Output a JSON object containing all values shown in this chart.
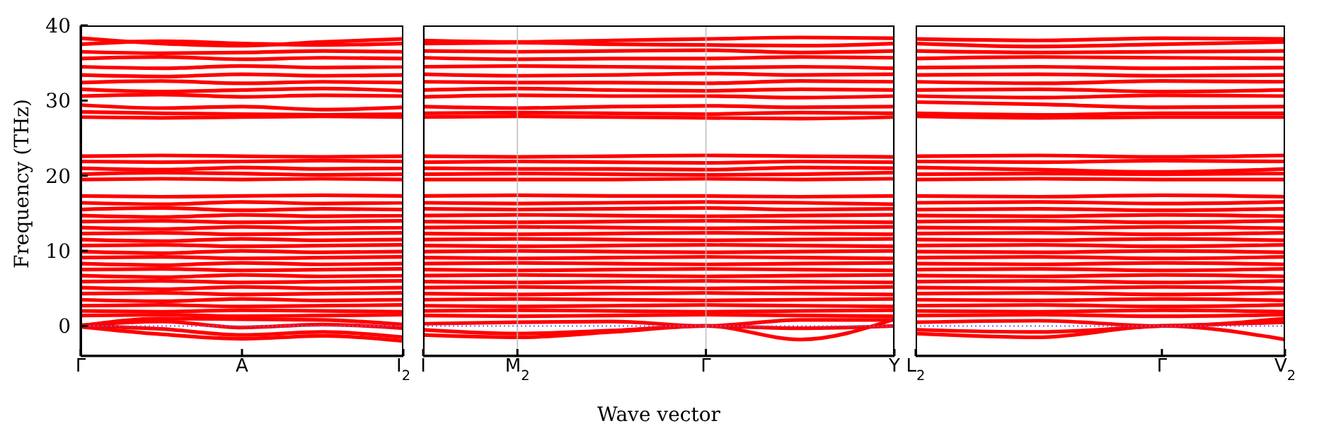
{
  "chart_data": [
    {
      "type": "line",
      "ylabel": "Frequency (THz)",
      "color": "#ff0000",
      "marker": "none",
      "ylim": [
        -4,
        40
      ],
      "yticks": [
        0,
        10,
        20,
        30,
        40
      ],
      "categories": [
        "Γ",
        null,
        "A",
        null,
        "I$_{2}$"
      ],
      "ref_lines": [
        {
          "axis": "y",
          "value": 0,
          "color": "#6666ff",
          "line_style": "dotted"
        }
      ],
      "series": [
        {
          "values": [
            38.3,
            37.6,
            37.3,
            37.8,
            38.2
          ]
        },
        {
          "values": [
            37.5,
            37.9,
            37.6,
            37.4,
            37.6
          ]
        },
        {
          "values": [
            36.5,
            36.3,
            36.4,
            36.6,
            36.5
          ]
        },
        {
          "values": [
            35.6,
            35.8,
            35.5,
            35.7,
            35.6
          ]
        },
        {
          "values": [
            34.5,
            34.3,
            34.6,
            34.4,
            34.5
          ]
        },
        {
          "values": [
            33.4,
            33.2,
            33.5,
            33.3,
            33.4
          ]
        },
        {
          "values": [
            32.4,
            32.6,
            32.3,
            32.5,
            32.4
          ]
        },
        {
          "values": [
            31.5,
            31.2,
            31.4,
            31.6,
            31.3
          ]
        },
        {
          "values": [
            30.6,
            30.8,
            30.5,
            30.7,
            30.6
          ]
        },
        {
          "values": [
            29.4,
            29,
            29.2,
            28.8,
            29.1
          ]
        },
        {
          "values": [
            28.5,
            28.3,
            28.2,
            28.1,
            28.2
          ]
        },
        {
          "values": [
            27.8,
            27.7,
            27.8,
            27.9,
            27.8
          ]
        },
        {
          "values": [
            22.6,
            22.7,
            22.6,
            22.5,
            22.6
          ]
        },
        {
          "values": [
            21.9,
            21.8,
            21.9,
            22,
            21.9
          ]
        },
        {
          "values": [
            21,
            20.8,
            21.1,
            20.9,
            21
          ]
        },
        {
          "values": [
            20.2,
            20.4,
            20.3,
            20.1,
            20.2
          ]
        },
        {
          "values": [
            19.5,
            19.6,
            19.5,
            19.6,
            19.5
          ]
        },
        {
          "values": [
            17.3,
            17.2,
            17.3,
            17.4,
            17.3
          ]
        },
        {
          "values": [
            16.4,
            16.2,
            16.5,
            16.3,
            16.4
          ]
        },
        {
          "values": [
            15.5,
            15.7,
            15.4,
            15.6,
            15.5
          ]
        },
        {
          "values": [
            14.7,
            14.5,
            14.8,
            14.6,
            14.7
          ]
        },
        {
          "values": [
            13.9,
            14,
            13.8,
            13.9,
            14
          ]
        },
        {
          "values": [
            13.1,
            12.9,
            13.2,
            13,
            13.1
          ]
        },
        {
          "values": [
            12.3,
            12.4,
            12.2,
            12.3,
            12.4
          ]
        },
        {
          "values": [
            11.5,
            11.3,
            11.6,
            11.4,
            11.5
          ]
        },
        {
          "values": [
            10.7,
            10.8,
            10.6,
            10.7,
            10.8
          ]
        },
        {
          "values": [
            9.9,
            9.7,
            10,
            9.8,
            9.9
          ]
        },
        {
          "values": [
            9.1,
            9.2,
            9,
            9.1,
            9.2
          ]
        },
        {
          "values": [
            8.3,
            8.1,
            8.4,
            8.2,
            8.3
          ]
        },
        {
          "values": [
            7.5,
            7.6,
            7.4,
            7.5,
            7.6
          ]
        },
        {
          "values": [
            6.7,
            6.5,
            6.8,
            6.6,
            6.7
          ]
        },
        {
          "values": [
            5.9,
            6,
            5.8,
            5.9,
            6
          ]
        },
        {
          "values": [
            5.1,
            4.9,
            5.2,
            5,
            5.1
          ]
        },
        {
          "values": [
            4.3,
            4.4,
            4.2,
            4.3,
            4.4
          ]
        },
        {
          "values": [
            3.5,
            3.3,
            3.6,
            3.4,
            3.5
          ]
        },
        {
          "values": [
            2.7,
            2.8,
            2.6,
            2.7,
            2.8
          ]
        },
        {
          "values": [
            2,
            1.9,
            2.1,
            2,
            1.9
          ]
        },
        {
          "values": [
            1.4,
            1.5,
            1.3,
            1.4,
            1.5
          ]
        },
        {
          "values": [
            0,
            1,
            0.9,
            0.8,
            0.2
          ]
        },
        {
          "values": [
            0.1,
            0.6,
            -0.2,
            0.2,
            -0.3
          ]
        },
        {
          "values": [
            0,
            -0.4,
            -1.2,
            -0.8,
            -1.5
          ]
        },
        {
          "values": [
            -0.1,
            -1.1,
            -1.7,
            -1.3,
            -2
          ]
        }
      ]
    },
    {
      "type": "line",
      "xlabel": "Wave vector",
      "color": "#ff0000",
      "marker": "none",
      "grid": "x",
      "tick_labels": "x",
      "ylim": [
        -4,
        40
      ],
      "yticks": [
        0,
        10,
        20,
        30,
        40
      ],
      "categories": [
        "I",
        "M$_{2}$",
        null,
        "Γ",
        null,
        "Y"
      ],
      "ref_lines": [
        {
          "axis": "y",
          "value": 0,
          "color": "#6666ff",
          "line_style": "dotted"
        }
      ],
      "series": [
        {
          "values": [
            38,
            37.8,
            38,
            38.2,
            38.4,
            38.3
          ]
        },
        {
          "values": [
            37.6,
            37.7,
            37.5,
            37.4,
            37.3,
            37.6
          ]
        },
        {
          "values": [
            36.6,
            36.5,
            36.6,
            36.7,
            36.4,
            36.6
          ]
        },
        {
          "values": [
            35.7,
            35.5,
            35.6,
            35.6,
            35.8,
            35.7
          ]
        },
        {
          "values": [
            34.5,
            34.6,
            34.5,
            34.4,
            34.5,
            34.3
          ]
        },
        {
          "values": [
            33.5,
            33.3,
            33.4,
            33.6,
            33.4,
            33.5
          ]
        },
        {
          "values": [
            32.5,
            32.4,
            32.4,
            32.3,
            32.6,
            32.5
          ]
        },
        {
          "values": [
            31.4,
            31.6,
            31.4,
            31.3,
            31.5,
            31.4
          ]
        },
        {
          "values": [
            30.5,
            30.7,
            30.6,
            30.6,
            30.4,
            30.6
          ]
        },
        {
          "values": [
            29.2,
            29,
            29.2,
            29.3,
            29.1,
            29.2
          ]
        },
        {
          "values": [
            28.3,
            28.4,
            28.3,
            28.2,
            28.4,
            28.3
          ]
        },
        {
          "values": [
            27.8,
            27.9,
            27.8,
            27.7,
            27.6,
            27.8
          ]
        },
        {
          "values": [
            22.6,
            22.5,
            22.6,
            22.7,
            22.6,
            22.5
          ]
        },
        {
          "values": [
            21.8,
            21.9,
            21.8,
            21.7,
            21.9,
            21.8
          ]
        },
        {
          "values": [
            21,
            20.9,
            20.9,
            20.8,
            21.1,
            21
          ]
        },
        {
          "values": [
            20.2,
            20.3,
            20.2,
            20.1,
            20.2,
            20.4
          ]
        },
        {
          "values": [
            19.5,
            19.5,
            19.5,
            19.6,
            19.5,
            19.6
          ]
        },
        {
          "values": [
            17.3,
            17.4,
            17.3,
            17.3,
            17.2,
            17.3
          ]
        },
        {
          "values": [
            16.4,
            16.3,
            16.4,
            16.5,
            16.4,
            16.2
          ]
        },
        {
          "values": [
            15.6,
            15.5,
            15.6,
            15.7,
            15.5,
            15.6
          ]
        },
        {
          "values": [
            14.7,
            14.8,
            14.7,
            14.6,
            14.7,
            14.8
          ]
        },
        {
          "values": [
            13.9,
            13.8,
            13.9,
            14,
            13.9,
            13.8
          ]
        },
        {
          "values": [
            13.1,
            13.2,
            13.1,
            13,
            13.1,
            13.2
          ]
        },
        {
          "values": [
            12.3,
            12.2,
            12.3,
            12.4,
            12.3,
            12.2
          ]
        },
        {
          "values": [
            11.5,
            11.6,
            11.5,
            11.4,
            11.5,
            11.6
          ]
        },
        {
          "values": [
            10.7,
            10.6,
            10.7,
            10.8,
            10.7,
            10.6
          ]
        },
        {
          "values": [
            9.9,
            10,
            9.9,
            9.8,
            9.9,
            10
          ]
        },
        {
          "values": [
            9.1,
            9,
            9.1,
            9.2,
            9.1,
            9
          ]
        },
        {
          "values": [
            8.3,
            8.4,
            8.3,
            8.2,
            8.3,
            8.4
          ]
        },
        {
          "values": [
            7.5,
            7.4,
            7.5,
            7.6,
            7.5,
            7.4
          ]
        },
        {
          "values": [
            6.7,
            6.8,
            6.7,
            6.6,
            6.7,
            6.8
          ]
        },
        {
          "values": [
            5.9,
            5.8,
            5.9,
            6,
            5.9,
            5.8
          ]
        },
        {
          "values": [
            5.1,
            5.2,
            5.1,
            5,
            5.1,
            5.2
          ]
        },
        {
          "values": [
            4.3,
            4.2,
            4.3,
            4.4,
            4.3,
            4.2
          ]
        },
        {
          "values": [
            3.5,
            3.6,
            3.5,
            3.4,
            3.5,
            3.6
          ]
        },
        {
          "values": [
            2.7,
            2.6,
            2.7,
            2.8,
            2.7,
            2.6
          ]
        },
        {
          "values": [
            2,
            2.1,
            2,
            1.9,
            2,
            2.1
          ]
        },
        {
          "values": [
            1.4,
            1.3,
            1.4,
            1.5,
            1.4,
            1.3
          ]
        },
        {
          "values": [
            0.3,
            0.5,
            0.6,
            0,
            0.8,
            0.8
          ]
        },
        {
          "values": [
            -0.5,
            -1,
            -0.6,
            0,
            -0.3,
            0
          ]
        },
        {
          "values": [
            -1.2,
            -1.5,
            -0.8,
            0,
            -1.8,
            0.9
          ]
        }
      ]
    },
    {
      "type": "line",
      "color": "#ff0000",
      "marker": "none",
      "tick_labels": "x",
      "ylim": [
        -4,
        40
      ],
      "yticks": [
        0,
        10,
        20,
        30,
        40
      ],
      "categories": [
        "L$_{2}$",
        null,
        "Γ",
        "V$_{2}$"
      ],
      "ref_lines": [
        {
          "axis": "y",
          "value": 0,
          "color": "#6666ff",
          "line_style": "dotted"
        }
      ],
      "series": [
        {
          "values": [
            38.2,
            38,
            38.3,
            38.2
          ]
        },
        {
          "values": [
            37.6,
            37.2,
            37.5,
            37.8
          ]
        },
        {
          "values": [
            36.6,
            36.4,
            36.5,
            36.6
          ]
        },
        {
          "values": [
            35.6,
            35.8,
            35.7,
            35.6
          ]
        },
        {
          "values": [
            34.4,
            34.5,
            34.3,
            34.4
          ]
        },
        {
          "values": [
            33.4,
            33.5,
            33.3,
            33.4
          ]
        },
        {
          "values": [
            32.5,
            32.3,
            32.6,
            32.5
          ]
        },
        {
          "values": [
            31.4,
            31.5,
            31.2,
            31.4
          ]
        },
        {
          "values": [
            30.6,
            30.4,
            30.7,
            30.6
          ]
        },
        {
          "values": [
            29.8,
            29.5,
            29.1,
            29.2
          ]
        },
        {
          "values": [
            28.3,
            28.1,
            28.3,
            28.3
          ]
        },
        {
          "values": [
            27.9,
            27.7,
            27.8,
            27.8
          ]
        },
        {
          "values": [
            22.6,
            22.7,
            22.5,
            22.7
          ]
        },
        {
          "values": [
            21.9,
            21.8,
            22,
            21.9
          ]
        },
        {
          "values": [
            21.1,
            20.8,
            20.5,
            20.9
          ]
        },
        {
          "values": [
            20.2,
            20.3,
            20.2,
            20.3
          ]
        },
        {
          "values": [
            19.5,
            19.6,
            19.5,
            19.5
          ]
        },
        {
          "values": [
            17.3,
            17.2,
            17.4,
            17.2
          ]
        },
        {
          "values": [
            16.4,
            16.5,
            16.3,
            16.5
          ]
        },
        {
          "values": [
            15.5,
            15.6,
            15.4,
            15.6
          ]
        },
        {
          "values": [
            14.7,
            14.6,
            14.8,
            14.6
          ]
        },
        {
          "values": [
            13.9,
            14,
            13.8,
            14
          ]
        },
        {
          "values": [
            13.1,
            13,
            13.2,
            13
          ]
        },
        {
          "values": [
            12.3,
            12.4,
            12.2,
            12.4
          ]
        },
        {
          "values": [
            11.5,
            11.4,
            11.6,
            11.4
          ]
        },
        {
          "values": [
            10.7,
            10.8,
            10.6,
            10.8
          ]
        },
        {
          "values": [
            9.9,
            9.8,
            10,
            9.8
          ]
        },
        {
          "values": [
            9.1,
            9.2,
            9,
            9.2
          ]
        },
        {
          "values": [
            8.3,
            8.2,
            8.4,
            8.2
          ]
        },
        {
          "values": [
            7.5,
            7.6,
            7.4,
            7.6
          ]
        },
        {
          "values": [
            6.7,
            6.6,
            6.8,
            6.6
          ]
        },
        {
          "values": [
            5.9,
            6,
            5.8,
            6
          ]
        },
        {
          "values": [
            5.1,
            5,
            5.2,
            5
          ]
        },
        {
          "values": [
            4.3,
            4.4,
            4.2,
            4.4
          ]
        },
        {
          "values": [
            3.5,
            3.4,
            3.6,
            3.4
          ]
        },
        {
          "values": [
            2.7,
            2.8,
            2.6,
            2.8
          ]
        },
        {
          "values": [
            2,
            1.9,
            2.1,
            1.9
          ]
        },
        {
          "values": [
            1.4,
            1.5,
            1.3,
            1.5
          ]
        },
        {
          "values": [
            0.5,
            0.7,
            0,
            1
          ]
        },
        {
          "values": [
            -0.5,
            -0.8,
            0,
            0.5
          ]
        },
        {
          "values": [
            -1,
            -1.5,
            0,
            -1.8
          ]
        }
      ]
    }
  ]
}
